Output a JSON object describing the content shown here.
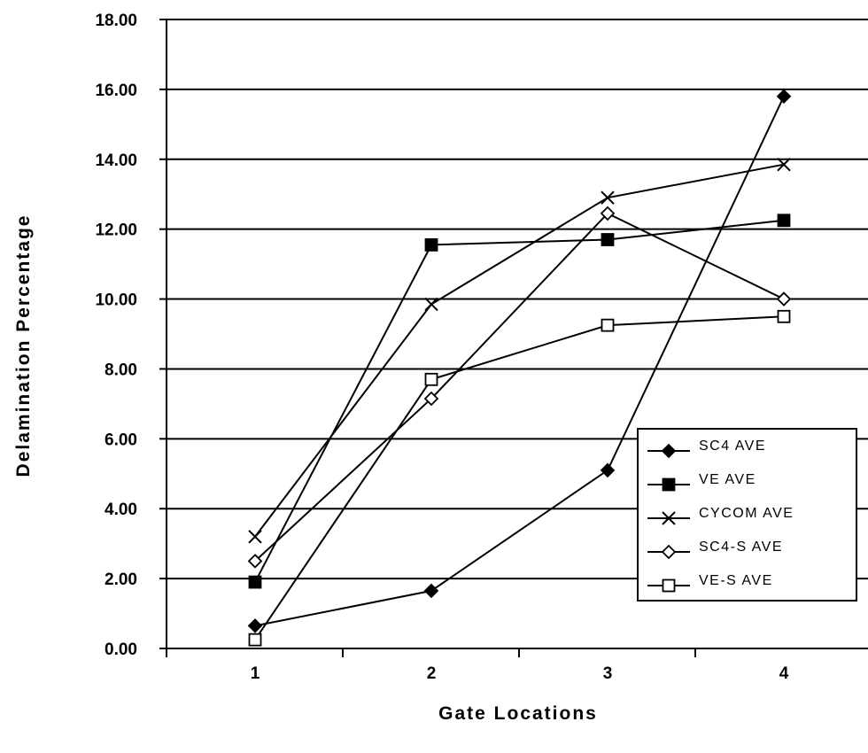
{
  "chart_data": {
    "type": "line",
    "title": "",
    "xlabel": "Gate Locations",
    "ylabel": "Delamination Percentage",
    "categories": [
      "1",
      "2",
      "3",
      "4"
    ],
    "ylim": [
      0,
      18
    ],
    "yticks": [
      "0.00",
      "2.00",
      "4.00",
      "6.00",
      "8.00",
      "10.00",
      "12.00",
      "14.00",
      "16.00",
      "18.00"
    ],
    "grid": "horizontal",
    "legend_position": "bottom-right",
    "series": [
      {
        "name": "SC4 AVE",
        "marker": "diamond-filled",
        "values": [
          0.65,
          1.65,
          5.1,
          15.8
        ]
      },
      {
        "name": "VE AVE",
        "marker": "square-filled",
        "values": [
          1.9,
          11.55,
          11.7,
          12.25
        ]
      },
      {
        "name": "CYCOM AVE",
        "marker": "x",
        "values": [
          3.2,
          9.85,
          12.9,
          13.85
        ]
      },
      {
        "name": "SC4-S AVE",
        "marker": "diamond-open",
        "values": [
          2.5,
          7.15,
          12.45,
          10.0
        ]
      },
      {
        "name": "VE-S AVE",
        "marker": "square-open",
        "values": [
          0.25,
          7.7,
          9.25,
          9.5
        ]
      }
    ]
  }
}
